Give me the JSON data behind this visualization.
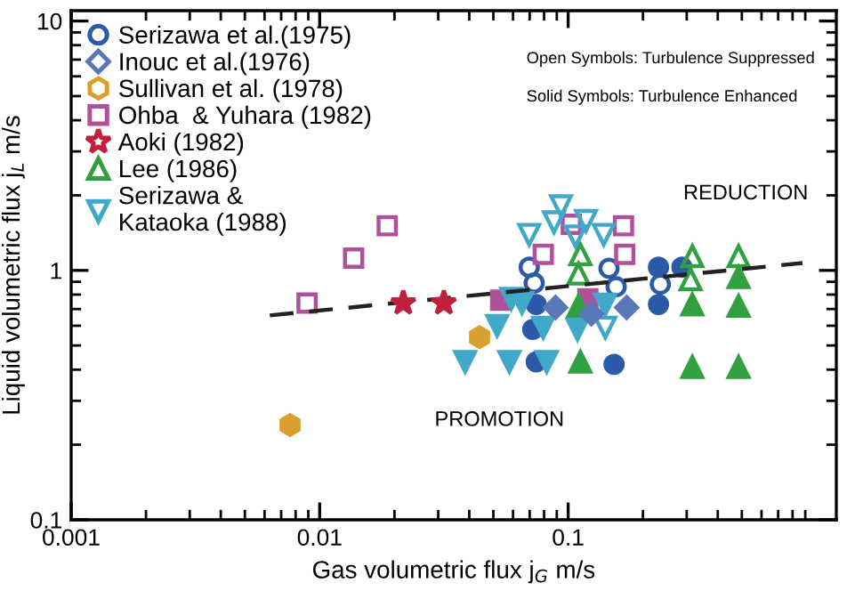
{
  "chart_data": {
    "type": "scatter",
    "xlabel": "Gas volumetric flux j$_{G}$ m/s",
    "ylabel": "Liquid volumetric flux j$_{L}$ m/s",
    "xlim": [
      0.001,
      1.2
    ],
    "ylim": [
      0.1,
      11
    ],
    "xticks": [
      0.001,
      0.01,
      0.1
    ],
    "yticks": [
      0.1,
      1,
      10
    ],
    "log": "xy",
    "grid": false,
    "legend": "top left",
    "annotations": [
      "Open Symbols: Turbulence Suppressed",
      "Solid Symbols: Turbulence Enhanced",
      "REDUCTION",
      "PROMOTION"
    ],
    "series": [
      {
        "name": "Serizawa et al.(1975)",
        "color": "#2a5aa8",
        "marker": "circle",
        "x": [
          0.0697,
          0.073,
          0.146,
          0.156,
          0.235
        ],
        "values": [
          1.03,
          0.89,
          1.02,
          0.86,
          0.88
        ]
      },
      {
        "color": "#2a5aa8",
        "marker": "circle",
        "x": [
          0.0744,
          0.072,
          0.0744,
          0.153,
          0.231,
          0.287,
          0.231
        ],
        "values": [
          0.73,
          0.58,
          0.43,
          0.42,
          1.03,
          1.03,
          0.73
        ]
      },
      {
        "name": "Inouc et al.(1976)",
        "color": "#5a78b8",
        "marker": "diamond",
        "x": [
          0.089,
          0.124,
          0.172
        ],
        "values": [
          0.71,
          0.67,
          0.71
        ]
      },
      {
        "name": "Sullivan et al. (1978)",
        "color": "#d9a030",
        "x": [
          0.044,
          0.0076
        ],
        "values": [
          0.54,
          0.24
        ]
      },
      {
        "name": "Ohba  & Yuhara (1982)",
        "color": "#b0509a",
        "marker": "square",
        "x": [
          0.0089,
          0.0137,
          0.0187,
          0.0794,
          0.103,
          0.167,
          0.169
        ],
        "values": [
          0.74,
          1.12,
          1.51,
          1.16,
          1.53,
          1.51,
          1.16
        ]
      },
      {
        "color": "#b0509a",
        "marker": "square",
        "x": [
          0.0535,
          0.12
        ],
        "values": [
          0.76,
          0.77
        ]
      },
      {
        "name": "Aoki (1982)",
        "color": "#c0203c",
        "marker": "star",
        "x": [
          0.0217,
          0.0316
        ],
        "values": [
          0.74,
          0.74
        ]
      },
      {
        "name": "Lee (1986)",
        "color": "#30a040",
        "marker": "triangle",
        "x": [
          0.112,
          0.11,
          0.316,
          0.311,
          0.485
        ],
        "values": [
          1.16,
          0.97,
          1.14,
          0.92,
          1.14
        ]
      },
      {
        "color": "#30a040",
        "marker": "triangle",
        "x": [
          0.11,
          0.316,
          0.485,
          0.485,
          0.112,
          0.316,
          0.485
        ],
        "values": [
          0.72,
          0.73,
          0.94,
          0.72,
          0.43,
          0.41,
          0.41
        ]
      },
      {
        "name": "Serizawa &\nKataoka (1988)",
        "color": "#40a8c8",
        "marker": "triangle_down",
        "x": [
          0.0936,
          0.0877,
          0.118,
          0.0697,
          0.107,
          0.139,
          0.141
        ],
        "values": [
          1.81,
          1.56,
          1.58,
          1.39,
          1.37,
          1.39,
          0.59
        ]
      },
      {
        "color": "#40a8c8",
        "marker": "triangle_down",
        "x": [
          0.059,
          0.0652,
          0.141,
          0.0518,
          0.0794,
          0.109,
          0.0385,
          0.058,
          0.082
        ],
        "values": [
          0.77,
          0.74,
          0.73,
          0.6,
          0.59,
          0.58,
          0.43,
          0.43,
          0.43
        ]
      },
      {
        "type": "line",
        "color": "#222222",
        "line_style": "dashed",
        "marker": "none",
        "x": [
          0.0063,
          0.877
        ],
        "values": [
          0.66,
          1.07
        ]
      }
    ]
  }
}
